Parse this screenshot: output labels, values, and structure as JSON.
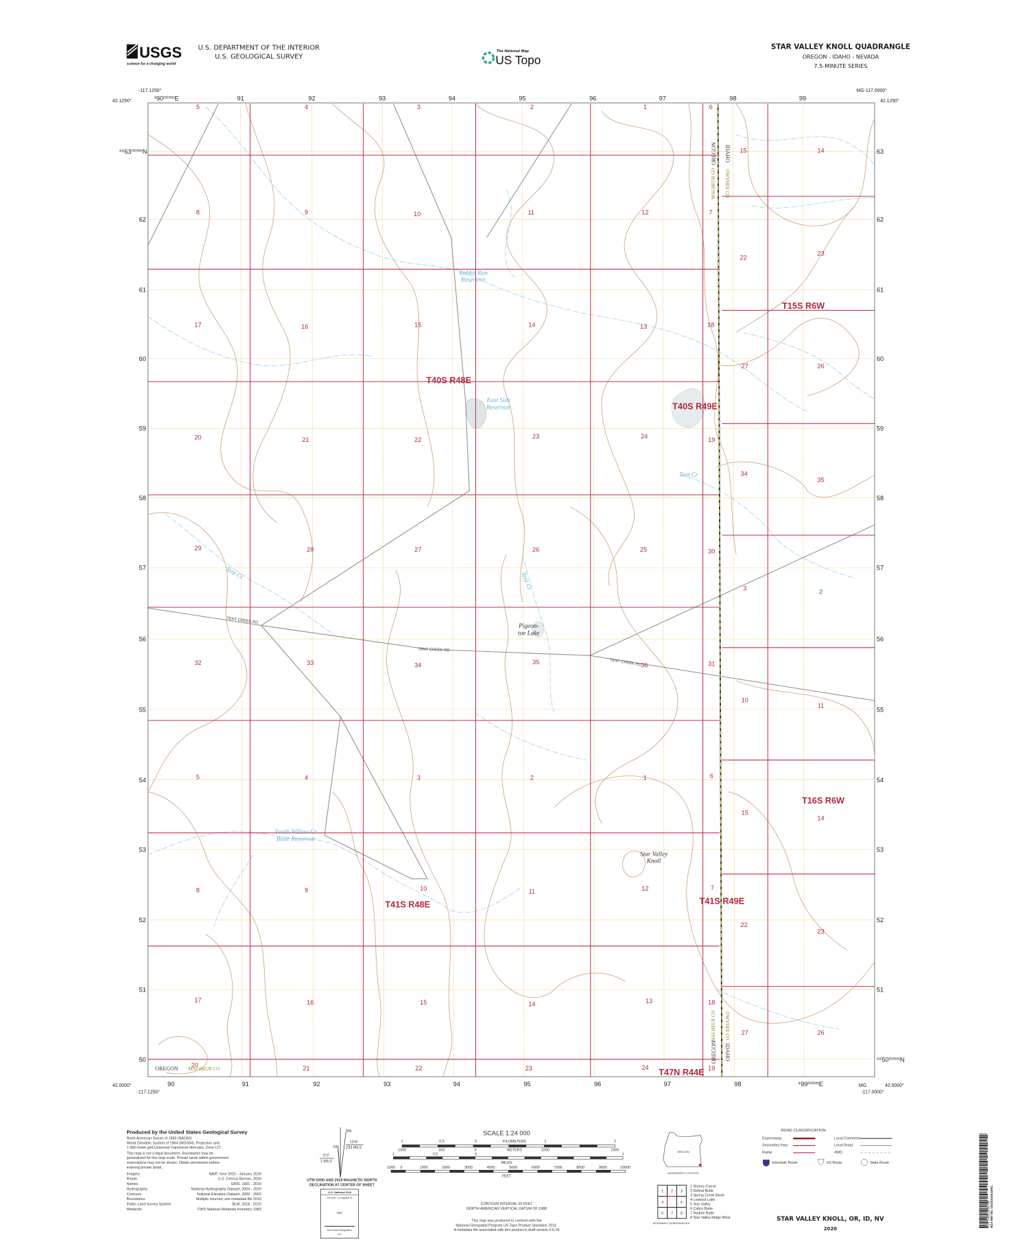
{
  "header": {
    "agency_line1": "U.S. DEPARTMENT OF THE INTERIOR",
    "agency_line2": "U.S. GEOLOGICAL SURVEY",
    "usgs_logo": "USGS",
    "usgs_tagline": "science for a changing world",
    "national_map": "The National Map",
    "us_topo": "US Topo",
    "quad_title": "STAR VALLEY KNOLL QUADRANGLE",
    "states": "OREGON - IDAHO - NEVADA",
    "series": "7.5-MINUTE SERIES"
  },
  "map": {
    "corners": {
      "top_left_lon": "-117.1250°",
      "top_left_lat": "42.1250°",
      "top_right_lon": "MG-117.0000°",
      "top_right_lat": "42.1250°",
      "bottom_left_lat": "42.0000°",
      "bottom_left_lon": "-117.1250°",
      "bottom_right_mg": "MG",
      "bottom_right_lon": "-117.0000°",
      "bottom_right_lat": "42.0000°"
    },
    "easting_top": [
      "⁴90⁰⁰⁰ᵐE",
      "91",
      "92",
      "93",
      "94",
      "95",
      "96",
      "97",
      "98",
      "99"
    ],
    "easting_bottom": [
      "90",
      "91",
      "92",
      "93",
      "94",
      "95",
      "96",
      "97",
      "98",
      "⁴99⁰⁰⁰ᵐE"
    ],
    "northing_left": [
      "⁴⁶63⁰⁰⁰ᵐN",
      "62",
      "61",
      "60",
      "59",
      "58",
      "57",
      "56",
      "55",
      "54",
      "53",
      "52",
      "51",
      "50"
    ],
    "northing_right": [
      "63",
      "62",
      "61",
      "60",
      "59",
      "58",
      "57",
      "56",
      "55",
      "54",
      "53",
      "52",
      "51",
      "⁴⁶50⁰⁰⁰ᵐN"
    ],
    "sections": [
      "5",
      "4",
      "3",
      "2",
      "1",
      "6",
      "15",
      "14",
      "8",
      "9",
      "10",
      "11",
      "12",
      "7",
      "22",
      "23",
      "17",
      "16",
      "15",
      "14",
      "13",
      "18",
      "27",
      "26",
      "20",
      "21",
      "22",
      "23",
      "24",
      "19",
      "34",
      "35",
      "29",
      "28",
      "27",
      "26",
      "25",
      "30",
      "3",
      "2",
      "32",
      "33",
      "34",
      "35",
      "36",
      "31",
      "10",
      "11",
      "5",
      "4",
      "3",
      "2",
      "1",
      "6",
      "15",
      "14",
      "8",
      "9",
      "10",
      "11",
      "12",
      "7",
      "22",
      "23",
      "17",
      "16",
      "15",
      "14",
      "13",
      "18",
      "27",
      "26",
      "20",
      "21",
      "22",
      "23",
      "24",
      "19"
    ],
    "townships": [
      "T40S R48E",
      "T40S R49E",
      "T15S R6W",
      "T16S R6W",
      "T41S R48E",
      "T41S R49E",
      "T47N R44E"
    ],
    "water_features": {
      "rabbit_run_1": "Rabbit Run",
      "rabbit_run_2": "Reservoir",
      "east_side_1": "East Side",
      "east_side_2": "Reservoir",
      "tent_cr_east": "Tent Cr",
      "tent_cr_west": "Tent Cr",
      "tent_cr_mid": "Tent Cr",
      "south_willow_1": "South Willow Cr",
      "south_willow_2": "Butte Reservoir"
    },
    "features": {
      "pigeon_1": "Pigeon-",
      "pigeon_2": "toe Lake",
      "knoll_1": "Star Valley",
      "knoll_2": "Knoll"
    },
    "roads": [
      "TENT CREEK RD",
      "TENT CREEK RD",
      "TENT CREEK RD"
    ],
    "boundaries": {
      "oregon": "OREGON",
      "idaho": "IDAHO",
      "malheur": "MALHEUR CO",
      "owyhee": "OWYHEE CO",
      "sw_oregon": "OREGON",
      "sw_malheur": "MALHEUR CO"
    },
    "colors": {
      "plss": "#c0304a",
      "water": "#9fd3e6",
      "contour": "#c9a27a",
      "road": "#8c8c8c",
      "utm": "#f2dfa6"
    }
  },
  "footer": {
    "produced_by": "Produced by the United States Geological Survey",
    "credits": [
      "North American Datum of 1983 (NAD83)",
      "World Geodetic System of 1984 (WGS84).  Projection and",
      "1 000-meter grid:Universal Transverse Mercator, Zone 11T"
    ],
    "disclaimer": [
      "This map is not a legal document. Boundaries may be",
      "generalized for this map scale. Private lands within government",
      "reservations may not be shown. Obtain permission before",
      "entering private lands."
    ],
    "sources": [
      {
        "name": "Imagery",
        "value": "NAIP, June 2015 - January 2018"
      },
      {
        "name": "Roads",
        "value": "U.S. Census Bureau, 2016"
      },
      {
        "name": "Names",
        "value": "GNIS, 1991 - 2018"
      },
      {
        "name": "Hydrography",
        "value": "National Hydrography Dataset, 2004 - 2019"
      },
      {
        "name": "Contours",
        "value": "National Elevation Dataset, 2000 - 2002"
      },
      {
        "name": "Boundaries",
        "value": "Multiple sources; see metadata file 2019"
      },
      {
        "name": "Public Land Survey System",
        "value": "BLM, 2018 - 2019"
      },
      {
        "name": "Wetlands",
        "value": "FWS National Wetlands Inventory 1983"
      }
    ],
    "declination": {
      "mn": "MN",
      "gn": "GN",
      "grid_angle": "0°3'",
      "grid_mils": "1 MILS",
      "mag_angle": "13°8'",
      "mag_mils": "233 MILS",
      "caption1": "UTM GRID AND 2019 MAGNETIC NORTH",
      "caption2": "DECLINATION AT CENTER OF SHEET"
    },
    "usng": {
      "title": "U.S. National Grid",
      "square_id_label": "100,000 - m Square ID",
      "square_id": "MG",
      "gzd_label": "Grid Zone Designation",
      "gzd": "11T"
    },
    "scale": {
      "title": "SCALE 1:24 000",
      "km_ticks": [
        "1",
        "0.5",
        "0",
        "1",
        "2"
      ],
      "km_unit": "KILOMETERS",
      "m_ticks": [
        "1000",
        "500",
        "0",
        "1000",
        "2000"
      ],
      "m_unit": "METERS",
      "mi_ticks": [
        "1",
        "0.5",
        "0",
        "1"
      ],
      "mi_unit": "MILES",
      "ft_ticks": [
        "1000",
        "0",
        "1000",
        "2000",
        "3000",
        "4000",
        "5000",
        "6000",
        "7000",
        "8000",
        "9000",
        "10000"
      ],
      "ft_unit": "FEET"
    },
    "contour_note": [
      "CONTOUR INTERVAL 20 FEET",
      "NORTH AMERICAN VERTICAL DATUM OF 1988"
    ],
    "standard_note": [
      "This map was produced to conform with the",
      "National Geospatial Program US Topo Product Standard, 2011.",
      "A metadata file associated with this product is draft version 0.6.18"
    ],
    "location": {
      "state": "OREGON",
      "caption": "QUADRANGLE LOCATION"
    },
    "adjoining": {
      "caption": "ADJOINING QUADRANGLES",
      "cells": [
        "1",
        "2",
        "3",
        "4",
        "5",
        "6",
        "7",
        "8"
      ],
      "names": [
        "1 Stoney Corral",
        "2 Defeat Butte",
        "3 Spring Creek Basin",
        "4 Lookout Lake",
        "5 Star Valley",
        "6 Calico Butte",
        "7 Nadine Butte",
        "8 Star Valley Ridge West"
      ]
    },
    "road_classification": {
      "title": "ROAD CLASSIFICATION",
      "left": [
        "Expressway",
        "Secondary Hwy",
        "Ramp"
      ],
      "right": [
        "Local Connector",
        "Local Road",
        "4WD"
      ],
      "routes": [
        "Interstate Route",
        "US Route",
        "State Route"
      ]
    },
    "sheet_title": "STAR VALLEY KNOLL,  OR, ID, NV",
    "year": "2020",
    "barcode_nsn": "NSN  7643016390794",
    "barcode_ref": "NGA REF NO. USGSX24K42951"
  }
}
